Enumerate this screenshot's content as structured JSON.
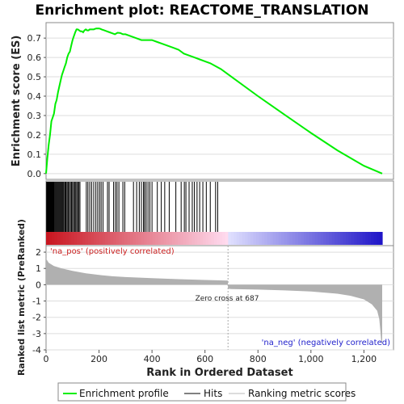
{
  "chart_data": {
    "type": "line",
    "title": "Enrichment plot: REACTOME_TRANSLATION",
    "xlabel": "Rank in Ordered Dataset",
    "top_panel": {
      "ylabel": "Enrichment score (ES)",
      "ylim": [
        -0.03,
        0.78
      ],
      "y_ticks": [
        "0.0",
        "0.1",
        "0.2",
        "0.3",
        "0.4",
        "0.5",
        "0.6",
        "0.7"
      ],
      "series": [
        {
          "name": "Enrichment profile",
          "color": "#00ee00",
          "x": [
            0,
            5,
            10,
            15,
            20,
            25,
            30,
            35,
            40,
            45,
            50,
            55,
            60,
            65,
            70,
            75,
            80,
            85,
            90,
            95,
            100,
            105,
            110,
            115,
            120,
            125,
            130,
            135,
            140,
            145,
            150,
            155,
            160,
            165,
            170,
            175,
            180,
            185,
            190,
            195,
            200,
            205,
            210,
            220,
            230,
            240,
            250,
            260,
            270,
            280,
            290,
            300,
            320,
            340,
            360,
            380,
            400,
            420,
            440,
            460,
            480,
            500,
            520,
            540,
            560,
            580,
            600,
            620,
            640,
            660,
            700,
            800,
            900,
            1000,
            1100,
            1200,
            1269
          ],
          "y": [
            0.0,
            0.08,
            0.15,
            0.2,
            0.27,
            0.29,
            0.31,
            0.36,
            0.38,
            0.42,
            0.45,
            0.48,
            0.51,
            0.53,
            0.55,
            0.57,
            0.6,
            0.62,
            0.63,
            0.66,
            0.69,
            0.71,
            0.73,
            0.745,
            0.745,
            0.74,
            0.735,
            0.735,
            0.73,
            0.74,
            0.745,
            0.74,
            0.74,
            0.745,
            0.745,
            0.745,
            0.745,
            0.748,
            0.75,
            0.75,
            0.75,
            0.748,
            0.745,
            0.74,
            0.735,
            0.73,
            0.725,
            0.72,
            0.728,
            0.726,
            0.72,
            0.72,
            0.71,
            0.7,
            0.69,
            0.69,
            0.69,
            0.68,
            0.67,
            0.66,
            0.65,
            0.64,
            0.62,
            0.61,
            0.6,
            0.59,
            0.58,
            0.57,
            0.555,
            0.54,
            0.5,
            0.4,
            0.305,
            0.21,
            0.12,
            0.04,
            0.0
          ]
        }
      ]
    },
    "hits": [
      2,
      4,
      6,
      8,
      10,
      12,
      14,
      16,
      18,
      20,
      22,
      24,
      26,
      28,
      30,
      33,
      36,
      39,
      42,
      45,
      48,
      51,
      54,
      57,
      60,
      63,
      66,
      70,
      73,
      76,
      80,
      84,
      88,
      92,
      96,
      100,
      104,
      108,
      112,
      116,
      120,
      124,
      128,
      152,
      158,
      165,
      172,
      180,
      188,
      195,
      202,
      208,
      215,
      232,
      238,
      255,
      262,
      268,
      275,
      290,
      297,
      330,
      342,
      352,
      360,
      368,
      372,
      378,
      385,
      392,
      400,
      420,
      435,
      448,
      465,
      490,
      510,
      522,
      528,
      540,
      552,
      560,
      570,
      580,
      592,
      605,
      620,
      640,
      648
    ],
    "middle_panel": {
      "ylabel": "Ranked list metric (PreRanked)",
      "ylim": [
        -4,
        2.4
      ],
      "y_ticks": [
        "2",
        "1",
        "0",
        "-1",
        "-2",
        "-3",
        "-4"
      ],
      "zero_cross_label": "Zero cross at 687",
      "zero_cross": 687,
      "pos_label": "'na_pos' (positively correlated)",
      "neg_label": "'na_neg' (negatively correlated)",
      "metric_x": [
        0,
        10,
        30,
        60,
        100,
        150,
        200,
        250,
        300,
        400,
        500,
        600,
        686,
        687,
        700,
        800,
        900,
        1000,
        1100,
        1150,
        1200,
        1230,
        1250,
        1258,
        1262,
        1265,
        1269
      ],
      "metric_y": [
        1.6,
        1.35,
        1.15,
        1.0,
        0.85,
        0.7,
        0.6,
        0.52,
        0.47,
        0.4,
        0.34,
        0.29,
        0.25,
        -0.25,
        -0.27,
        -0.3,
        -0.35,
        -0.42,
        -0.55,
        -0.68,
        -0.9,
        -1.2,
        -1.6,
        -2.1,
        -2.8,
        -3.4,
        -3.7
      ]
    },
    "x_ticks": [
      "0",
      "200",
      "400",
      "600",
      "800",
      "1,000",
      "1,200"
    ],
    "x_range": [
      0,
      1269
    ],
    "legend": [
      "Enrichment profile",
      "Hits",
      "Ranking metric scores"
    ],
    "legend_colors": {
      "profile": "#00ee00",
      "hits": "#000000",
      "metric": "#bbbbbb"
    }
  }
}
